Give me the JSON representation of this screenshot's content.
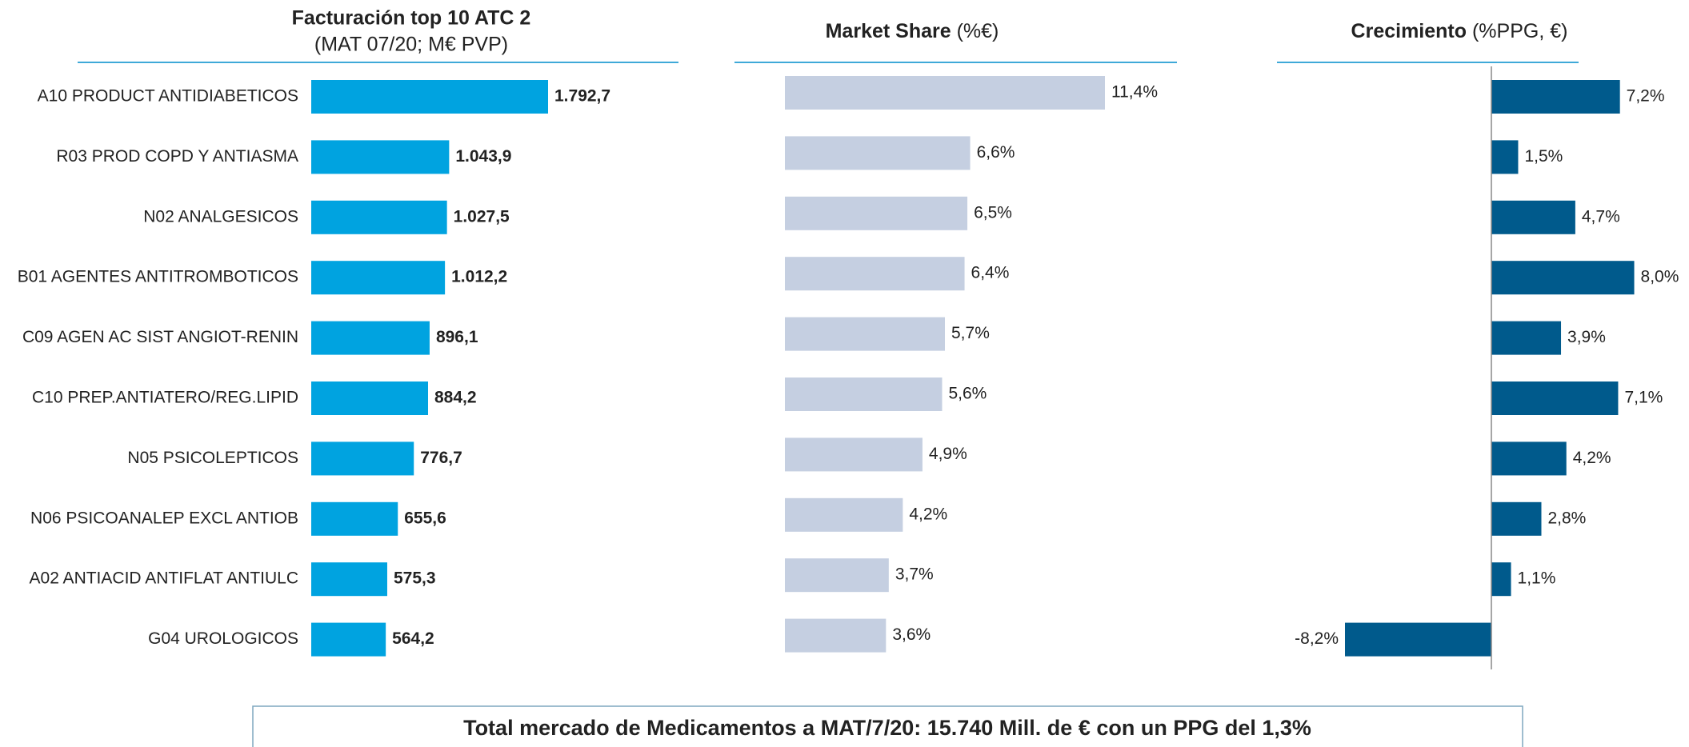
{
  "chart_data": [
    {
      "type": "bar",
      "orientation": "horizontal",
      "title": "Facturación top 10 ATC 2",
      "subtitle": "(MAT 07/20; M€ PVP)",
      "categories": [
        "A10 PRODUCT ANTIDIABETICOS",
        "R03 PROD COPD Y ANTIASMA",
        "N02 ANALGESICOS",
        "B01 AGENTES ANTITROMBOTICOS",
        "C09 AGEN AC SIST ANGIOT-RENIN",
        "C10 PREP.ANTIATERO/REG.LIPID",
        "N05 PSICOLEPTICOS",
        "N06 PSICOANALEP EXCL ANTIOB",
        "A02 ANTIACID ANTIFLAT ANTIULC",
        "G04 UROLOGICOS"
      ],
      "values": [
        1792.7,
        1043.9,
        1027.5,
        1012.2,
        896.1,
        884.2,
        776.7,
        655.6,
        575.3,
        564.2
      ],
      "value_labels": [
        "1.792,7",
        "1.043,9",
        "1.027,5",
        "1.012,2",
        "896,1",
        "884,2",
        "776,7",
        "655,6",
        "575,3",
        "564,2"
      ],
      "color": "#00a3e0"
    },
    {
      "type": "bar",
      "orientation": "horizontal",
      "title": "Market Share",
      "subtitle": "(%€)",
      "values": [
        11.4,
        6.6,
        6.5,
        6.4,
        5.7,
        5.6,
        4.9,
        4.2,
        3.7,
        3.6
      ],
      "value_labels": [
        "11,4%",
        "6,6%",
        "6,5%",
        "6,4%",
        "5,7%",
        "5,6%",
        "4,9%",
        "4,2%",
        "3,7%",
        "3,6%"
      ],
      "color": "#c5cfe1"
    },
    {
      "type": "bar",
      "orientation": "horizontal",
      "title": "Crecimiento",
      "subtitle": "(%PPG, €)",
      "values": [
        7.2,
        1.5,
        4.7,
        8.0,
        3.9,
        7.1,
        4.2,
        2.8,
        1.1,
        -8.2
      ],
      "value_labels": [
        "7,2%",
        "1,5%",
        "4,7%",
        "8,0%",
        "3,9%",
        "7,1%",
        "4,2%",
        "2,8%",
        "1,1%",
        "-8,2%"
      ],
      "color": "#005a8c"
    }
  ],
  "footer": "Total mercado de Medicamentos a MAT/7/20: 15.740 Mill. de € con un PPG del 1,3%"
}
